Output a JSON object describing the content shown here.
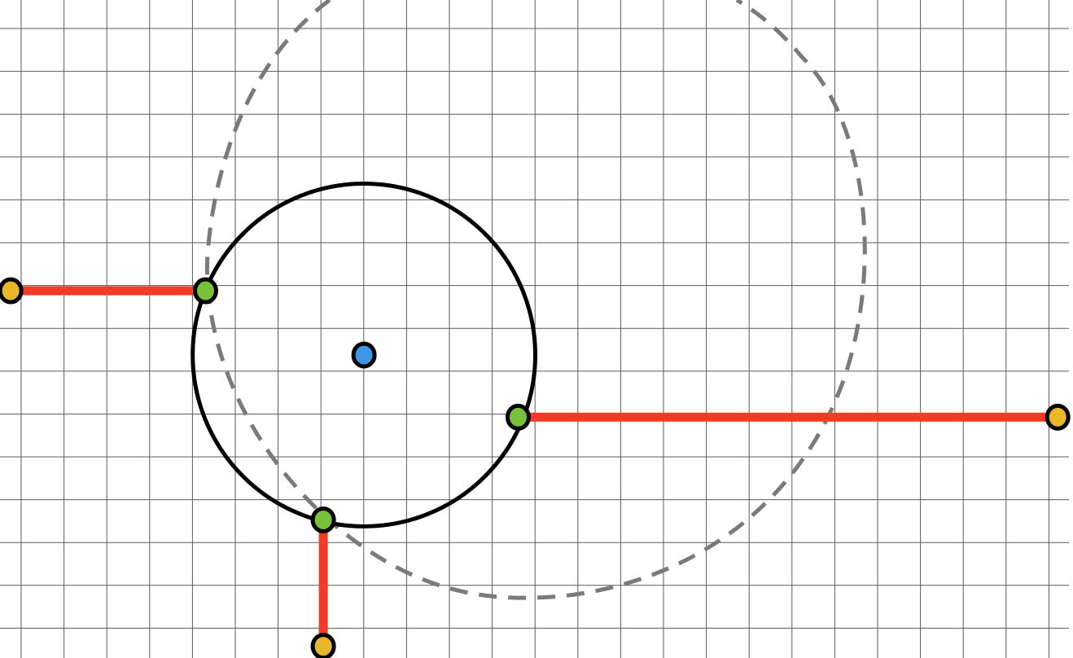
{
  "colors": {
    "background": "#ffffff",
    "grid": "#5a5a5a",
    "circle_stroke": "#000000",
    "dashed_curve": "#7a7a7a",
    "connector": "#f23a27",
    "center_point": "#3f96e6",
    "contact_point": "#78c23a",
    "anchor_point": "#e8b828",
    "point_outline": "#000000"
  },
  "grid": {
    "spacing_units": 1,
    "visible": true
  },
  "circle": {
    "center": {
      "x": 8.5,
      "y": 8.25
    },
    "radius": 4
  },
  "dashed_curve": {
    "style": "dashed",
    "description_icon": "dashed-boundary"
  },
  "connectors": [
    {
      "name": "left-connector",
      "from": {
        "x": 0.25,
        "y": 6.75
      },
      "to": {
        "x": 4.8,
        "y": 6.75
      }
    },
    {
      "name": "right-connector",
      "from": {
        "x": 12.1,
        "y": 9.7
      },
      "to": {
        "x": 24.7,
        "y": 9.7
      }
    },
    {
      "name": "bottom-connector",
      "from": {
        "x": 7.55,
        "y": 12.1
      },
      "to": {
        "x": 7.55,
        "y": 15.05
      }
    }
  ],
  "points": {
    "center": {
      "x": 8.5,
      "y": 8.25
    },
    "contacts": [
      {
        "x": 4.8,
        "y": 6.75
      },
      {
        "x": 12.1,
        "y": 9.7
      },
      {
        "x": 7.55,
        "y": 12.1
      }
    ],
    "anchors": [
      {
        "x": 0.25,
        "y": 6.75
      },
      {
        "x": 24.7,
        "y": 9.7
      },
      {
        "x": 7.55,
        "y": 15.05
      }
    ]
  }
}
